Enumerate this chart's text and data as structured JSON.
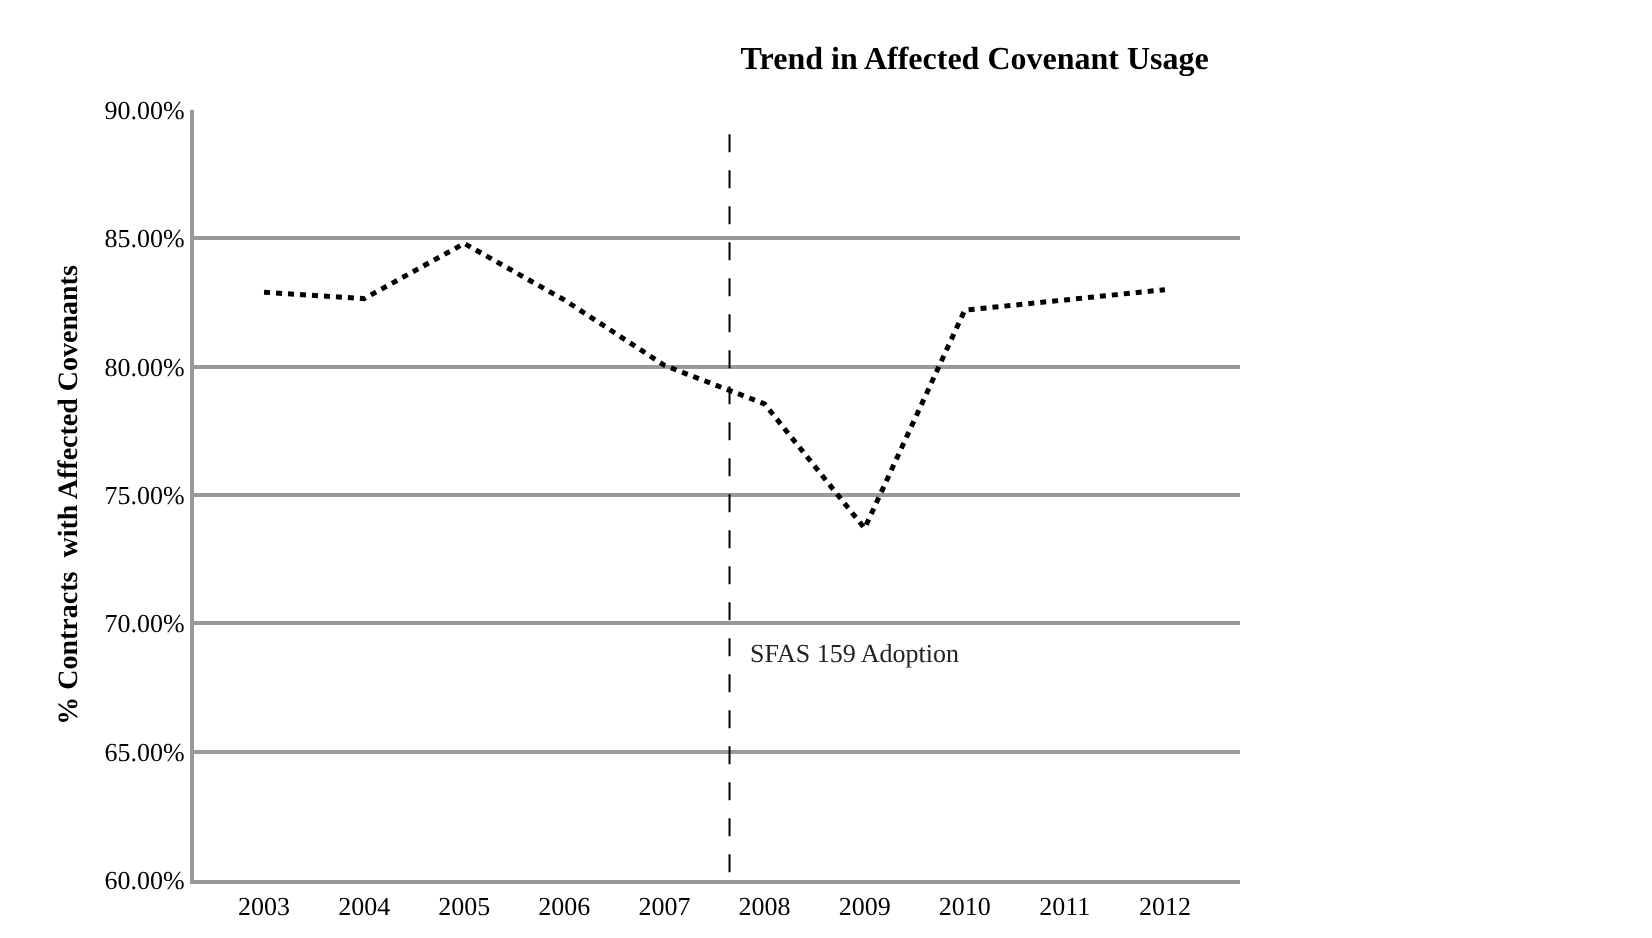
{
  "chart_data": {
    "type": "line",
    "title": "Trend in Affected Covenant Usage",
    "ylabel": "% Contracts  with Affected Covenants",
    "x": [
      2003,
      2004,
      2005,
      2006,
      2007,
      2008,
      2009,
      2010,
      2011,
      2012
    ],
    "series": [
      {
        "color": "#000000",
        "values": [
          82.9,
          82.65,
          84.8,
          82.6,
          80.05,
          78.55,
          73.7,
          82.2,
          82.6,
          83.0
        ]
      }
    ],
    "xlim": [
      2002.3,
      2012.75
    ],
    "xticks": [
      2003,
      2004,
      2005,
      2006,
      2007,
      2008,
      2009,
      2010,
      2011,
      2012
    ],
    "ylim": [
      60,
      90
    ],
    "yticks": [
      {
        "value": 60,
        "label": "60.00%"
      },
      {
        "value": 65,
        "label": "65.00%"
      },
      {
        "value": 70,
        "label": "70.00%"
      },
      {
        "value": 75,
        "label": "75.00%"
      },
      {
        "value": 80,
        "label": "80.00%"
      },
      {
        "value": 85,
        "label": "85.00%"
      },
      {
        "value": 90,
        "label": "90.00%"
      }
    ],
    "ref_lines": [
      {
        "axis": "x",
        "value": 2007.65,
        "label": "SFAS 159 Adoption",
        "color": "#000000",
        "line_style": "dashed"
      }
    ],
    "grid": "y",
    "marker": "none",
    "line_style": "dotted"
  }
}
